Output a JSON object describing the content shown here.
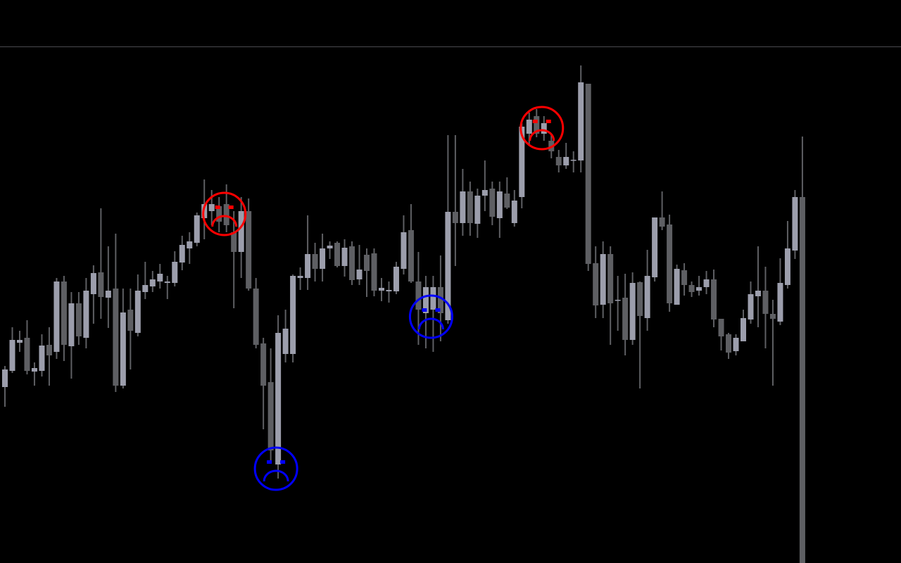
{
  "chart_data": {
    "type": "candlestick",
    "title": "",
    "xlabel": "",
    "ylabel": "",
    "ylim": [
      0,
      80
    ],
    "grid": false,
    "colors": {
      "background": "#000000",
      "bullish": "#9c9eac",
      "bearish": "#5e5f63",
      "separator": "#4a4a4f",
      "marker_red": "#ff0000",
      "marker_blue": "#0000ff"
    },
    "ohlc_format": [
      "open",
      "high",
      "low",
      "close"
    ],
    "candles": [
      [
        25.0,
        28.0,
        22.2,
        27.5
      ],
      [
        27.3,
        33.5,
        27.0,
        31.7
      ],
      [
        31.3,
        33.0,
        30.0,
        31.7
      ],
      [
        32.0,
        34.5,
        26.8,
        27.3
      ],
      [
        27.2,
        28.5,
        25.2,
        27.7
      ],
      [
        27.3,
        32.5,
        26.5,
        30.9
      ],
      [
        31.0,
        33.5,
        25.2,
        29.5
      ],
      [
        30.0,
        40.5,
        29.0,
        40.0
      ],
      [
        40.0,
        40.8,
        28.7,
        31.0
      ],
      [
        30.8,
        38.5,
        26.2,
        36.9
      ],
      [
        36.9,
        38.5,
        31.0,
        32.2
      ],
      [
        32.0,
        40.5,
        30.5,
        38.7
      ],
      [
        38.2,
        42.3,
        34.0,
        41.2
      ],
      [
        41.3,
        50.4,
        34.7,
        37.8
      ],
      [
        37.7,
        45.0,
        33.4,
        38.7
      ],
      [
        39.0,
        46.8,
        24.3,
        25.2
      ],
      [
        25.2,
        39.0,
        24.8,
        35.6
      ],
      [
        36.0,
        39.0,
        27.5,
        33.0
      ],
      [
        32.7,
        41.0,
        32.2,
        38.7
      ],
      [
        38.5,
        42.8,
        37.5,
        39.5
      ],
      [
        39.3,
        41.5,
        38.5,
        40.3
      ],
      [
        40.0,
        42.5,
        39.0,
        41.1
      ],
      [
        39.8,
        40.8,
        37.5,
        40.0
      ],
      [
        39.8,
        44.3,
        39.3,
        42.8
      ],
      [
        42.7,
        46.5,
        41.6,
        45.2
      ],
      [
        44.7,
        47.0,
        42.5,
        45.7
      ],
      [
        45.5,
        49.8,
        45.0,
        49.4
      ],
      [
        49.0,
        54.5,
        46.0,
        51.0
      ],
      [
        50.0,
        53.0,
        48.0,
        51.0
      ],
      [
        50.7,
        52.0,
        47.0,
        48.5
      ],
      [
        51.0,
        53.8,
        47.0,
        48.0
      ],
      [
        47.0,
        50.0,
        36.2,
        44.2
      ],
      [
        44.2,
        52.0,
        40.5,
        50.0
      ],
      [
        50.0,
        51.8,
        38.7,
        39.0
      ],
      [
        39.0,
        40.5,
        30.5,
        31.0
      ],
      [
        31.2,
        32.0,
        19.0,
        25.2
      ],
      [
        25.7,
        30.5,
        14.5,
        16.0
      ],
      [
        14.0,
        35.2,
        12.0,
        32.7
      ],
      [
        29.7,
        36.0,
        28.5,
        33.3
      ],
      [
        29.7,
        41.0,
        28.5,
        40.8
      ],
      [
        40.5,
        42.0,
        38.8,
        40.8
      ],
      [
        40.5,
        49.4,
        38.8,
        43.9
      ],
      [
        43.9,
        45.5,
        40.0,
        41.8
      ],
      [
        41.8,
        46.8,
        40.0,
        44.7
      ],
      [
        44.7,
        45.7,
        43.2,
        45.1
      ],
      [
        45.5,
        45.7,
        42.0,
        42.2
      ],
      [
        42.2,
        46.0,
        40.7,
        44.8
      ],
      [
        45.0,
        45.7,
        39.5,
        40.2
      ],
      [
        40.3,
        45.2,
        39.5,
        41.7
      ],
      [
        43.8,
        44.7,
        37.8,
        41.5
      ],
      [
        44.0,
        44.7,
        37.9,
        38.7
      ],
      [
        38.7,
        40.5,
        37.2,
        39.1
      ],
      [
        38.6,
        40.0,
        37.0,
        38.8
      ],
      [
        38.6,
        42.8,
        38.2,
        42.1
      ],
      [
        41.8,
        49.4,
        41.0,
        47.0
      ],
      [
        47.3,
        51.0,
        39.8,
        40.0
      ],
      [
        40.0,
        44.2,
        31.0,
        36.0
      ],
      [
        35.5,
        40.8,
        30.5,
        39.2
      ],
      [
        36.0,
        40.8,
        30.0,
        39.2
      ],
      [
        39.2,
        43.7,
        31.5,
        35.5
      ],
      [
        34.5,
        60.8,
        34.0,
        49.9
      ],
      [
        49.9,
        60.8,
        42.2,
        48.3
      ],
      [
        48.3,
        56.0,
        46.5,
        52.8
      ],
      [
        52.8,
        54.2,
        46.5,
        48.3
      ],
      [
        48.2,
        53.2,
        46.2,
        52.2
      ],
      [
        52.2,
        57.2,
        50.0,
        53.0
      ],
      [
        53.2,
        54.2,
        48.0,
        49.2
      ],
      [
        49.0,
        54.2,
        46.2,
        52.8
      ],
      [
        52.5,
        54.8,
        50.3,
        50.5
      ],
      [
        48.3,
        53.0,
        47.8,
        51.5
      ],
      [
        52.0,
        62.5,
        50.4,
        62.0
      ],
      [
        61.0,
        64.0,
        59.5,
        63.0
      ],
      [
        63.5,
        64.5,
        60.5,
        61.0
      ],
      [
        61.0,
        63.5,
        60.0,
        62.5
      ],
      [
        60.0,
        61.0,
        57.5,
        58.5
      ],
      [
        57.7,
        58.7,
        55.5,
        56.5
      ],
      [
        56.5,
        59.7,
        56.0,
        57.7
      ],
      [
        57.2,
        58.5,
        55.5,
        57.3
      ],
      [
        57.2,
        70.7,
        55.5,
        68.3
      ],
      [
        68.1,
        68.1,
        41.5,
        42.5
      ],
      [
        42.6,
        45.0,
        34.8,
        36.6
      ],
      [
        36.7,
        45.7,
        34.8,
        43.9
      ],
      [
        43.9,
        45.0,
        31.0,
        36.9
      ],
      [
        37.3,
        40.8,
        33.0,
        37.4
      ],
      [
        37.7,
        41.1,
        29.5,
        31.7
      ],
      [
        31.7,
        41.3,
        31.0,
        39.8
      ],
      [
        39.9,
        40.0,
        24.8,
        35.1
      ],
      [
        34.8,
        44.5,
        33.0,
        40.8
      ],
      [
        40.6,
        49.1,
        40.0,
        49.1
      ],
      [
        49.1,
        52.8,
        47.3,
        47.8
      ],
      [
        48.1,
        49.5,
        35.7,
        36.9
      ],
      [
        36.7,
        42.4,
        36.7,
        41.8
      ],
      [
        41.6,
        42.6,
        38.0,
        39.5
      ],
      [
        39.5,
        40.0,
        37.8,
        38.5
      ],
      [
        38.7,
        40.8,
        38.0,
        39.2
      ],
      [
        39.2,
        41.5,
        38.2,
        40.3
      ],
      [
        40.3,
        41.7,
        33.5,
        34.6
      ],
      [
        34.7,
        34.7,
        30.2,
        32.2
      ],
      [
        32.5,
        32.7,
        29.0,
        29.9
      ],
      [
        30.1,
        32.5,
        29.5,
        32.0
      ],
      [
        31.5,
        36.0,
        31.5,
        34.8
      ],
      [
        34.6,
        40.0,
        34.0,
        38.2
      ],
      [
        37.9,
        45.0,
        33.5,
        38.7
      ],
      [
        38.7,
        42.1,
        30.5,
        35.4
      ],
      [
        35.4,
        37.4,
        25.2,
        34.7
      ],
      [
        34.3,
        43.3,
        33.8,
        39.8
      ],
      [
        39.5,
        48.6,
        39.0,
        44.7
      ],
      [
        44.4,
        53.0,
        43.2,
        52.0
      ],
      [
        52.0,
        60.6,
        0.0,
        0.0
      ]
    ],
    "markers": [
      {
        "icon": "frown-face-icon",
        "color": "red",
        "candle_index": 30,
        "price": 49.6
      },
      {
        "icon": "frown-face-icon",
        "color": "red",
        "candle_index": 73,
        "price": 61.8
      },
      {
        "icon": "frown-face-icon",
        "color": "blue",
        "candle_index": 58,
        "price": 35.0
      },
      {
        "icon": "frown-face-icon",
        "color": "blue",
        "candle_index": 37,
        "price": 13.4
      }
    ]
  }
}
